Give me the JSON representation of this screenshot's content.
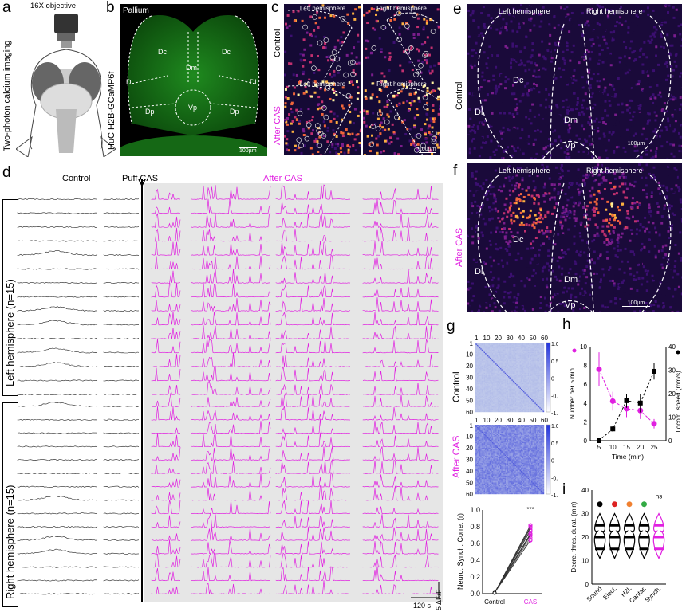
{
  "panels": {
    "a": {
      "label": "a",
      "objective": "16X objective",
      "side": "Two-photon calcium imaging"
    },
    "b": {
      "label": "b",
      "side": "HuC:H2B-GCaMP6f",
      "title": "Pallium",
      "regions": [
        "Dc",
        "Dm",
        "Dc",
        "Dl",
        "Dl",
        "Dp",
        "Vp",
        "Dp"
      ],
      "scale": "100µm"
    },
    "c": {
      "label": "c",
      "row_control": "Control",
      "row_after": "After CAS",
      "left": "Left hemisphere",
      "right": "Right hemisphere",
      "scale": "100µm"
    },
    "d": {
      "label": "d",
      "control": "Control",
      "puff": "Puff CAS",
      "after": "After CAS",
      "left_group": "Left hemisphere (n=15)",
      "right_group": "Right hemisphere (n=15)",
      "scale_time": "120 s",
      "scale_amp": "5 ΔF/F"
    },
    "e": {
      "label": "e",
      "row": "Control",
      "left": "Left hemisphere",
      "right": "Right hemisphere",
      "regions": [
        "Dc",
        "Dl",
        "Dm",
        "Vp"
      ],
      "scale": "100µm"
    },
    "f": {
      "label": "f",
      "row": "After CAS",
      "left": "Left hemisphere",
      "right": "Right hemisphere",
      "regions": [
        "Dc",
        "Dl",
        "Dm",
        "Vp"
      ],
      "scale": "100µm"
    },
    "g": {
      "label": "g",
      "row_control": "Control",
      "row_after": "After CAS",
      "xticks": [
        "1",
        "10",
        "20",
        "30",
        "40",
        "50",
        "60"
      ],
      "yticks": [
        "1",
        "10",
        "20",
        "30",
        "40",
        "50",
        "60"
      ],
      "cbar": [
        "1.0",
        "0.5",
        "0",
        "-0.5",
        "-1.0"
      ],
      "synch": {
        "ylabel": "Neuro. Synch. Corre. (r)",
        "yticks": [
          "0.0",
          "0.2",
          "0.4",
          "0.6",
          "0.8",
          "1.0"
        ],
        "xcats": [
          "Control",
          "CAS"
        ],
        "sig": "***"
      }
    },
    "h": {
      "label": "h"
    },
    "i": {
      "label": "i"
    }
  },
  "colors": {
    "magenta": "#e020e0",
    "green": "#2fae2f",
    "accent": "#3b4fe0"
  },
  "chart_data": [
    {
      "type": "line",
      "panel": "h",
      "xlabel": "Time (min)",
      "ylabel": "Number per 5 min",
      "y2label": "Locom. speed (mm/s)",
      "x": [
        5,
        10,
        15,
        20,
        25
      ],
      "xticks": [
        "5",
        "10",
        "15",
        "20",
        "25"
      ],
      "ylim": [
        0,
        10
      ],
      "yticks": [
        "0",
        "2",
        "4",
        "6",
        "8",
        "10"
      ],
      "y2lim": [
        0,
        40
      ],
      "y2ticks": [
        "0",
        "10",
        "20",
        "30",
        "40"
      ],
      "series": [
        {
          "name": "Number per 5 min",
          "axis": "left",
          "color": "#e020e0",
          "values": [
            7.6,
            4.2,
            3.4,
            3.2,
            1.8
          ],
          "err": [
            1.8,
            1.0,
            0.9,
            0.9,
            0.5
          ]
        },
        {
          "name": "Locom. speed",
          "axis": "right",
          "color": "#000000",
          "values": [
            0,
            5,
            17,
            16,
            29.5
          ],
          "err": [
            0,
            1.2,
            3,
            4,
            3.5
          ]
        }
      ]
    },
    {
      "type": "violin",
      "panel": "i",
      "ylabel": "Decre. thres. durat. (min)",
      "categories": [
        "Sound",
        "Elect.",
        "H2L",
        "Cantar.",
        "Synch."
      ],
      "ylim": [
        0,
        40
      ],
      "yticks": [
        "0",
        "10",
        "20",
        "30",
        "40"
      ],
      "medians": [
        20,
        20,
        20,
        20,
        22
      ],
      "annotation": "ns"
    }
  ]
}
